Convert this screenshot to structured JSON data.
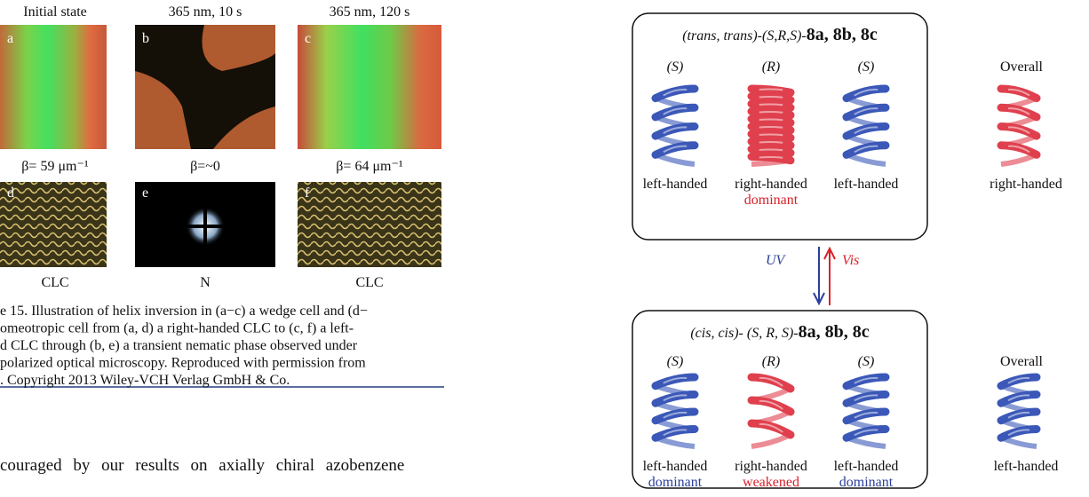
{
  "figure": {
    "columns": [
      {
        "title": "Initial state",
        "top_letter": "a",
        "beta": "β= 59 μm⁻¹",
        "bottom_letter": "d",
        "phase": "CLC"
      },
      {
        "title": "365 nm, 10 s",
        "top_letter": "b",
        "beta": "β=~0",
        "bottom_letter": "e",
        "phase": "N"
      },
      {
        "title": "365 nm, 120 s",
        "top_letter": "c",
        "beta": "β= 64 μm⁻¹",
        "bottom_letter": "f",
        "phase": "CLC"
      }
    ],
    "caption": [
      "e 15. Illustration of helix inversion in (a−c) a wedge cell and (d−",
      "omeotropic cell from (a, d) a right-handed CLC to (c, f) a left-",
      "d CLC through (b, e) a transient nematic phase observed under",
      "polarized optical microscopy. Reproduced with permission from",
      ". Copyright 2013 Wiley-VCH Verlag GmbH & Co."
    ]
  },
  "body_text": "couraged by our results on axially chiral azobenzene",
  "scheme": {
    "top": {
      "title_prefix": "(trans, trans)-(S,R,S)-",
      "title_compounds": "8a, 8b, 8c",
      "units": [
        {
          "config": "(S)",
          "hand": "left-handed"
        },
        {
          "config": "(R)",
          "hand": "right-handed",
          "note": "dominant"
        },
        {
          "config": "(S)",
          "hand": "left-handed"
        }
      ],
      "overall": "Overall",
      "overall_hand": "right-handed"
    },
    "arrows": {
      "down": "UV",
      "up": "Vis"
    },
    "bottom": {
      "title_prefix": "(cis, cis)- (S, R, S)-",
      "title_compounds": "8a, 8b, 8c",
      "units": [
        {
          "config": "(S)",
          "hand": "left-handed",
          "note": "dominant"
        },
        {
          "config": "(R)",
          "hand": "right-handed",
          "note": "weakened"
        },
        {
          "config": "(S)",
          "hand": "left-handed",
          "note": "dominant"
        }
      ],
      "overall": "Overall",
      "overall_hand": "left-handed"
    }
  }
}
